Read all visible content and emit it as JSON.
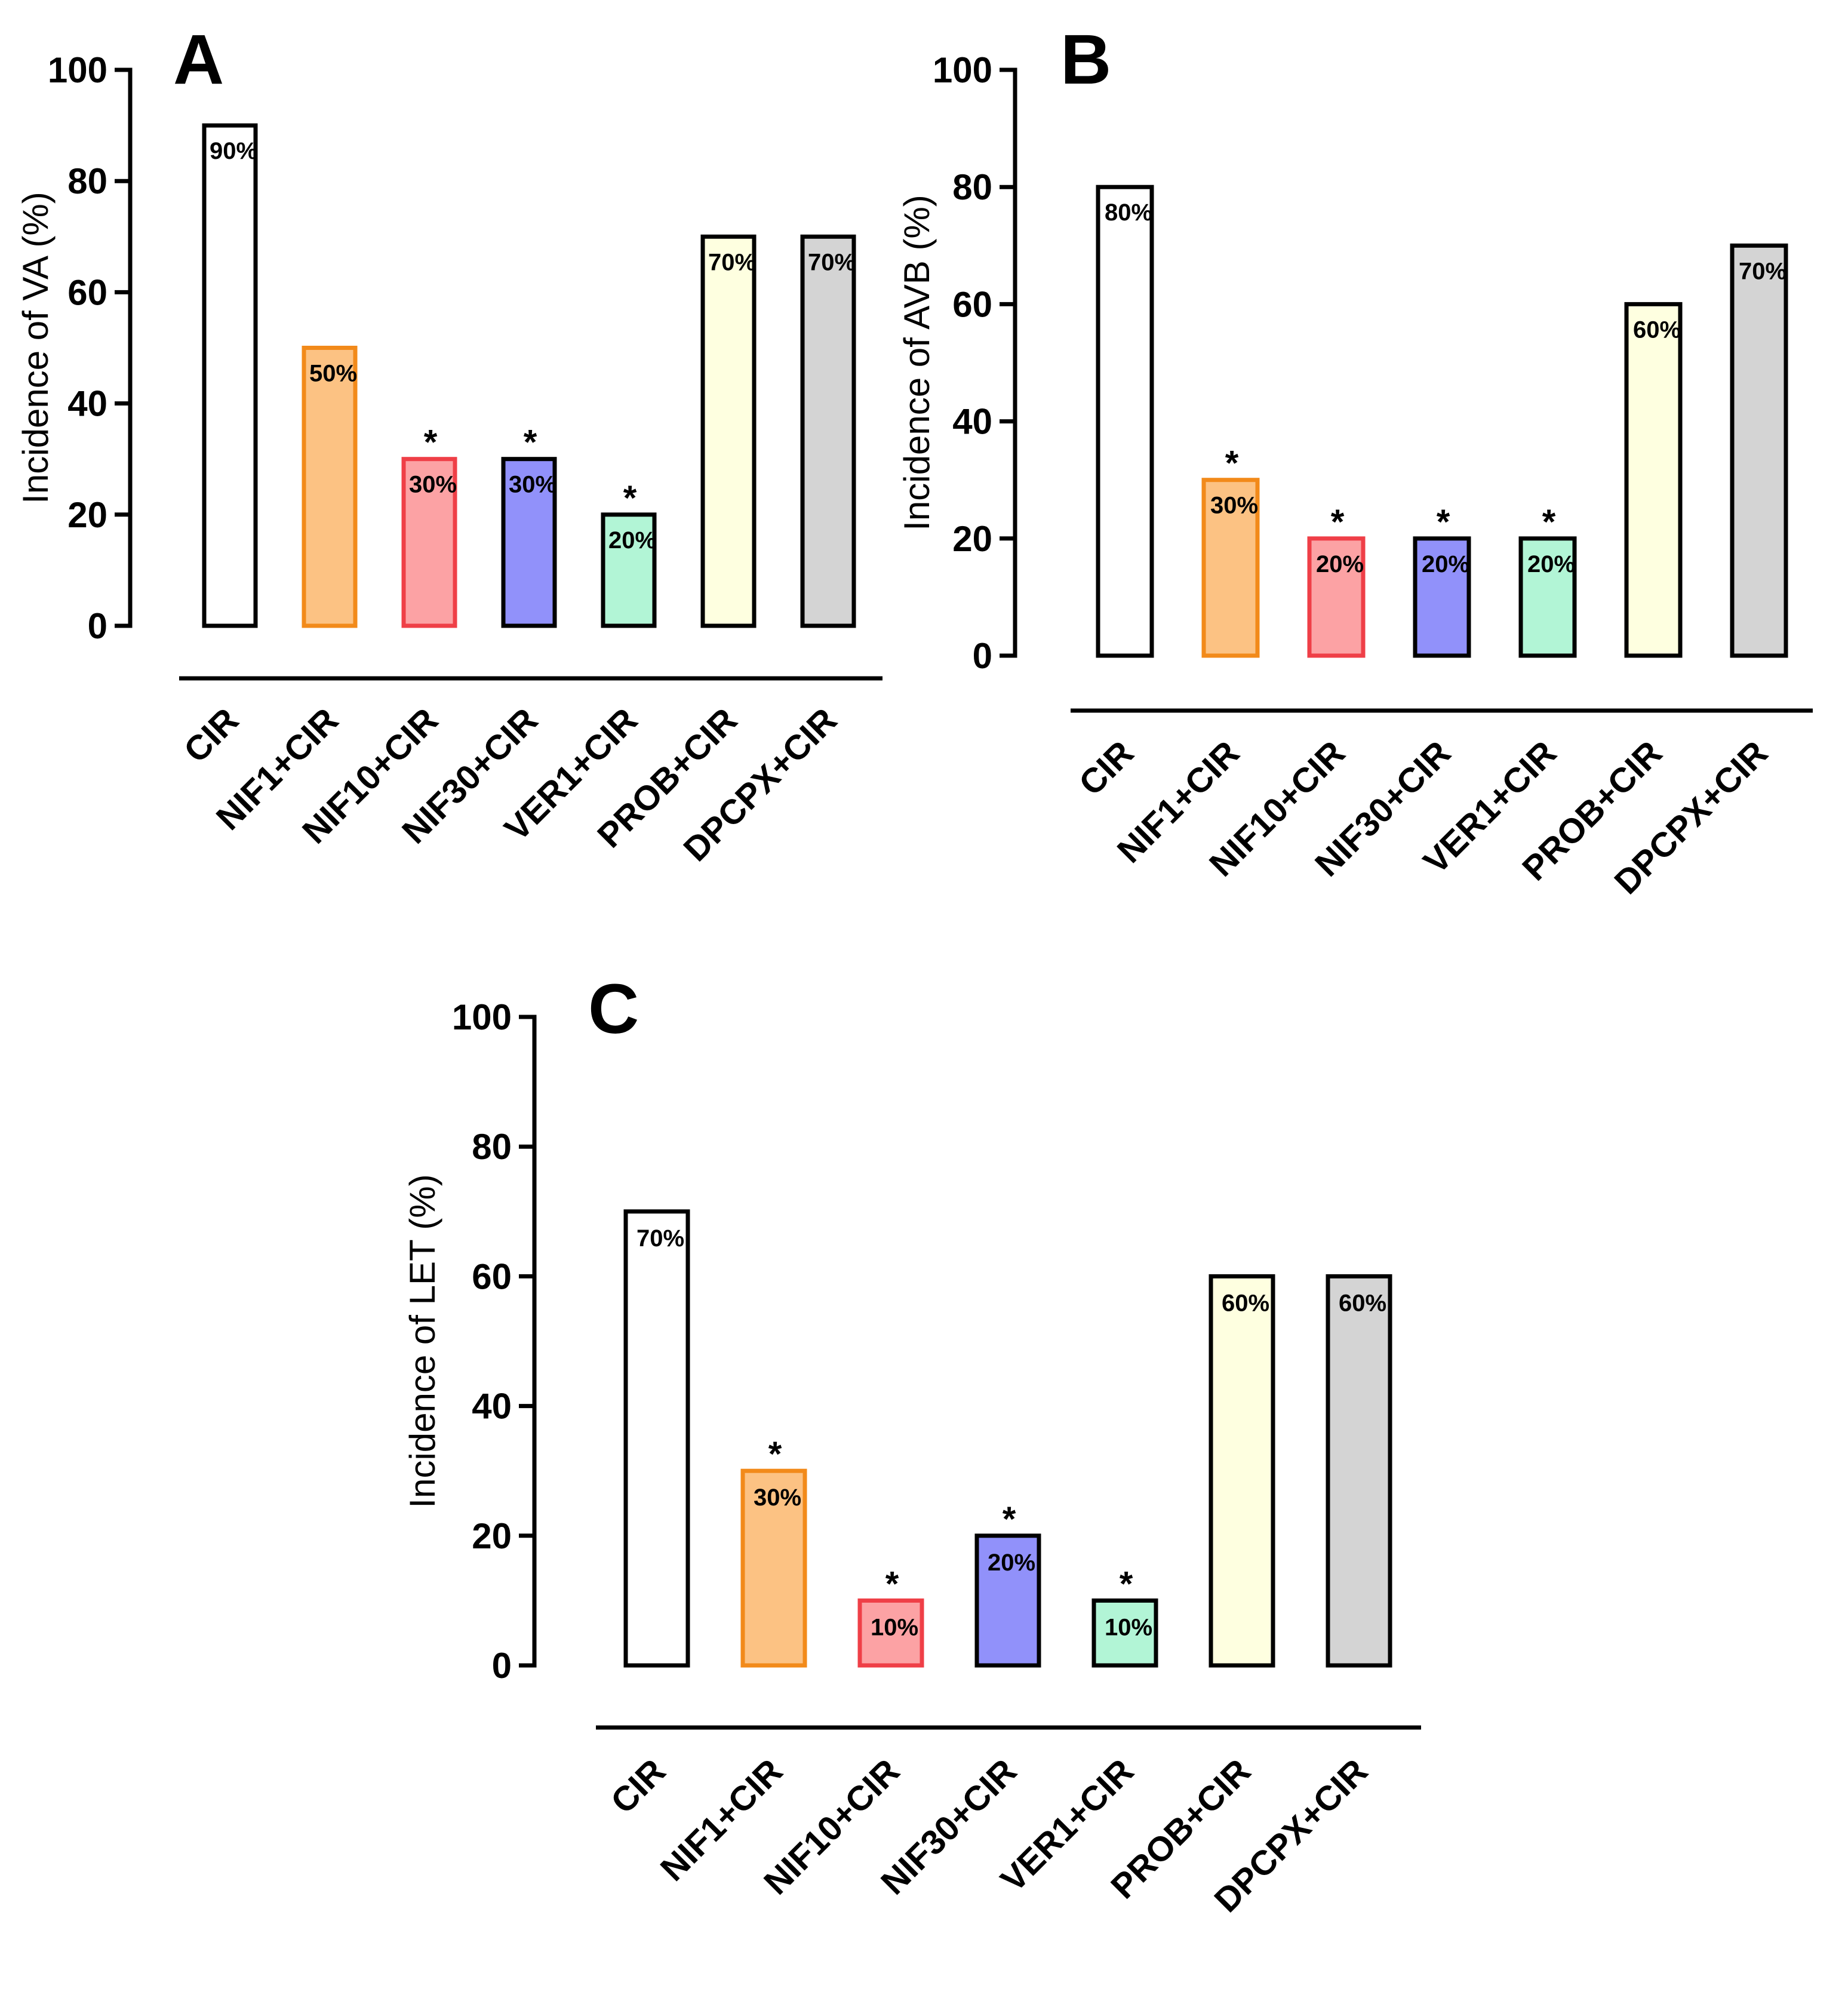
{
  "chart_data": [
    {
      "type": "bar",
      "panel": "A",
      "ylabel": "Incidence of VA  (%)",
      "ylim": [
        0,
        100
      ],
      "yticks": [
        0,
        20,
        40,
        60,
        80,
        100
      ],
      "categories": [
        "CIR",
        "NIF1+CIR",
        "NIF10+CIR",
        "NIF30+CIR",
        "VER1+CIR",
        "PROB+CIR",
        "DPCPX+CIR"
      ],
      "values": [
        90,
        50,
        30,
        30,
        20,
        70,
        70
      ],
      "value_labels": [
        "90%",
        "50%",
        "30%",
        "30%",
        "20%",
        "70%",
        "70%"
      ],
      "significance": [
        "",
        "",
        "*",
        "*",
        "*",
        "",
        ""
      ]
    },
    {
      "type": "bar",
      "panel": "B",
      "ylabel": "Incidence of AVB  (%)",
      "ylim": [
        0,
        100
      ],
      "yticks": [
        0,
        20,
        40,
        60,
        80,
        100
      ],
      "categories": [
        "CIR",
        "NIF1+CIR",
        "NIF10+CIR",
        "NIF30+CIR",
        "VER1+CIR",
        "PROB+CIR",
        "DPCPX+CIR"
      ],
      "values": [
        80,
        30,
        20,
        20,
        20,
        60,
        70
      ],
      "value_labels": [
        "80%",
        "30%",
        "20%",
        "20%",
        "20%",
        "60%",
        "70%"
      ],
      "significance": [
        "",
        "*",
        "*",
        "*",
        "*",
        "",
        ""
      ]
    },
    {
      "type": "bar",
      "panel": "C",
      "ylabel": "Incidence of LET  (%)",
      "ylim": [
        0,
        100
      ],
      "yticks": [
        0,
        20,
        40,
        60,
        80,
        100
      ],
      "categories": [
        "CIR",
        "NIF1+CIR",
        "NIF10+CIR",
        "NIF30+CIR",
        "VER1+CIR",
        "PROB+CIR",
        "DPCPX+CIR"
      ],
      "values": [
        70,
        30,
        10,
        20,
        10,
        60,
        60
      ],
      "value_labels": [
        "70%",
        "30%",
        "10%",
        "20%",
        "10%",
        "60%",
        "60%"
      ],
      "significance": [
        "",
        "*",
        "*",
        "*",
        "*",
        "",
        ""
      ]
    }
  ],
  "colors": {
    "bar_fills": [
      "#ffffff",
      "#fcc283",
      "#fca2a4",
      "#9191fa",
      "#b2f5d6",
      "#feffe0",
      "#d4d4d4"
    ],
    "bar_strokes": [
      "#000000",
      "#f28a1a",
      "#ef3f47",
      "#000000",
      "#000000",
      "#000000",
      "#000000"
    ],
    "bar_strokes_c": [
      "#000000",
      "#f28a1a",
      "#ef3f47",
      "#000000",
      "#000000",
      "#000000",
      "#000000"
    ]
  }
}
